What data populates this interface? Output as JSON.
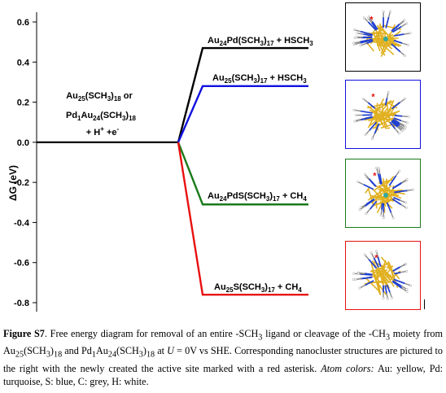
{
  "chart_data": {
    "type": "line",
    "ylabel": "ΔG (eV)",
    "ylim": [
      -0.8,
      0.6
    ],
    "yticks": [
      "0.6",
      "0.4",
      "0.2",
      "0.0",
      "-0.2",
      "-0.4",
      "-0.6",
      "-0.8"
    ],
    "initial_state": {
      "lines": [
        "Au25(SCH3)18 or",
        "Pd1Au24(SCH3)18",
        "+ H+ +e-"
      ],
      "value": 0.0
    },
    "series": [
      {
        "name": "Au24Pd(SCH3)17 + HSCH3",
        "color": "#000000",
        "values": [
          0.0,
          0.47
        ]
      },
      {
        "name": "Au25(SCH3)17 + HSCH3",
        "color": "#1010e0",
        "values": [
          0.0,
          0.28
        ]
      },
      {
        "name": "Au24PdS(SCH3)17 + CH4",
        "color": "#1a7a1a",
        "values": [
          0.0,
          -0.31
        ]
      },
      {
        "name": "Au25S(SCH3)17 + CH4",
        "color": "#e81010",
        "values": [
          0.0,
          -0.76
        ]
      }
    ]
  },
  "structures": [
    {
      "border_color": "#000000",
      "has_pd": true
    },
    {
      "border_color": "#1010e0",
      "has_pd": false
    },
    {
      "border_color": "#1a7a1a",
      "has_pd": true
    },
    {
      "border_color": "#e81010",
      "has_pd": false
    }
  ],
  "caption": {
    "label": "Figure S7",
    "text_1": ". Free energy diagram for removal of an entire -SCH",
    "sub_1": "3",
    "text_2": " ligand or cleavage of the -CH",
    "sub_2": "3",
    "text_3": " moiety from Au",
    "sub_3": "25",
    "text_4": "(SCH",
    "sub_4": "3",
    "text_5": ")",
    "sub_5": "18",
    "text_6": " and Pd",
    "sub_6": "1",
    "text_7": "Au",
    "sub_7": "24",
    "text_8": "(SCH",
    "sub_8": "3",
    "text_9": ")",
    "sub_9": "18",
    "text_10": " at ",
    "italic_u": "U",
    "text_11": " = 0V vs SHE. Corresponding nanocluster structures are pictured to the right with the newly created the active site marked with a red asterisk. ",
    "italic_atom": "Atom colors:",
    "text_12": " Au: yellow, Pd: turquoise, S: blue, C: grey, H: white."
  }
}
